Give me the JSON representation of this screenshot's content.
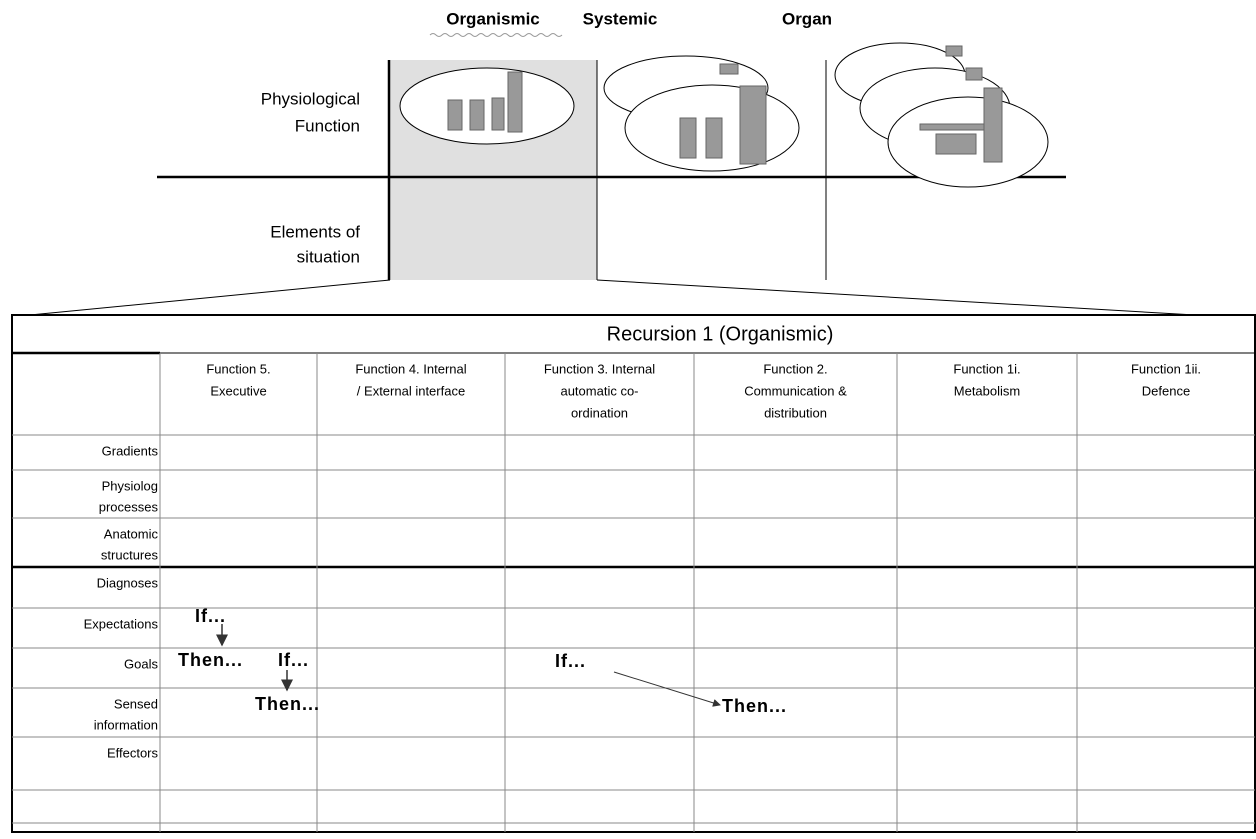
{
  "header": {
    "levels": [
      "Organismic",
      "Systemic",
      "Organ"
    ],
    "rows": [
      [
        "Physiological",
        "Function"
      ],
      [
        "Elements of",
        "situation"
      ]
    ]
  },
  "table": {
    "title": "Recursion 1 (Organismic)",
    "columns": [
      [
        "Function  5.",
        "Executive"
      ],
      [
        "Function 4. Internal",
        "/ External interface"
      ],
      [
        "Function 3. Internal",
        "automatic co-",
        "ordination"
      ],
      [
        "Function 2.",
        "Communication &",
        "distribution"
      ],
      [
        "Function 1i.",
        "Metabolism"
      ],
      [
        "Function 1ii.",
        "Defence"
      ]
    ],
    "rows": [
      [
        "Gradients"
      ],
      [
        "Physiolog",
        "processes"
      ],
      [
        "Anatomic",
        "structures"
      ],
      [
        "Diagnoses"
      ],
      [
        "Expectations"
      ],
      [
        "Goals"
      ],
      [
        "Sensed",
        "information"
      ],
      [
        "Effectors"
      ]
    ]
  },
  "annotations": [
    "If...",
    "Then...",
    "If...",
    "Then...",
    "If...",
    "Then..."
  ]
}
